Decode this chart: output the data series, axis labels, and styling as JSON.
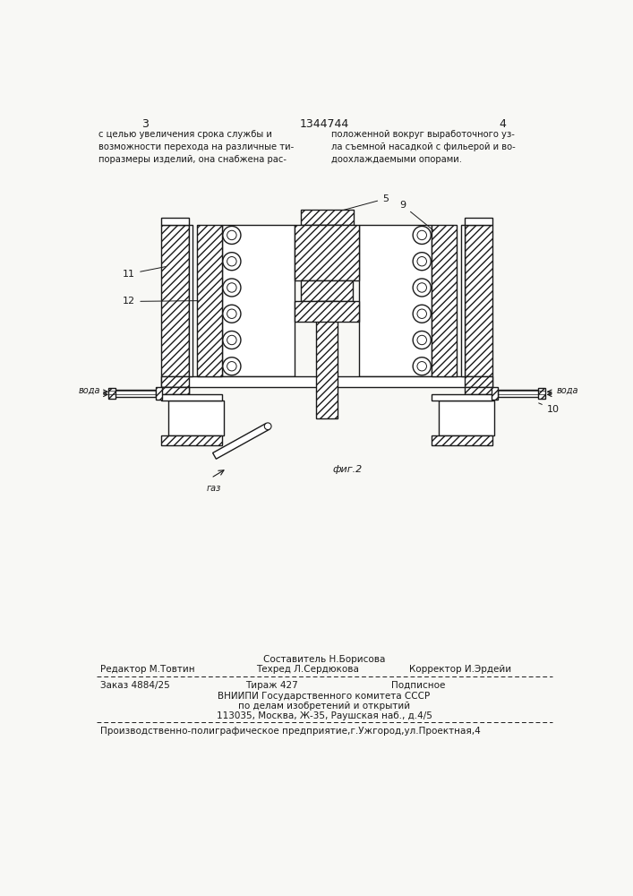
{
  "page_number_left": "3",
  "patent_number": "1344744",
  "page_number_right": "4",
  "text_left": "с целью увеличения срока службы и\nвозможности перехода на различные ти-\nпоразмеры изделий, она снабжена рас-",
  "text_right": "положенной вокруг выработочного уз-\nла съемной насадкой с фильерой и во-\nдоохлаждаемыми опорами.",
  "fig_label": "фиг.2",
  "gas_label": "газ",
  "voda_left": "вода",
  "voda_right": "вода",
  "footer_above": "Составитель Н.Борисова",
  "footer_line1_col1": "Редактор М.Товтин",
  "footer_line1_col2": "Техред Л.Сердюкова",
  "footer_line1_col3": "Корректор И.Эрдейи",
  "footer_line2_col1": "Заказ 4884/25",
  "footer_line2_col2": "Тираж 427",
  "footer_line2_col3": "Подписное",
  "footer_vniishi": "ВНИИПИ Государственного комитета СССР",
  "footer_po": "по делам изобретений и открытий",
  "footer_address": "113035, Москва, Ж-35, Раушская наб., д.4/5",
  "footer_production": "Производственно-полиграфическое предприятие,г.Ужгород,ул.Проектная,4",
  "bg_color": "#f8f8f5",
  "line_color": "#1a1a1a"
}
